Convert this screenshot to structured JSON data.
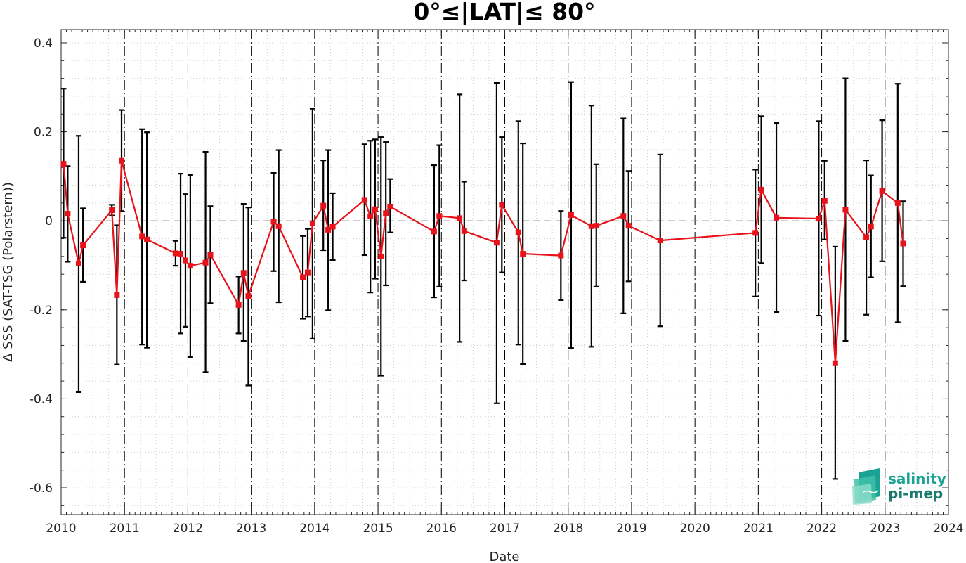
{
  "chart_data": {
    "type": "line",
    "title": "0°≤|LAT|≤ 80°",
    "xlabel": "Date",
    "ylabel": "Δ SSS (SAT-TSG (Polarstern))",
    "xlim": [
      "2010-01-01",
      "2024-01-01"
    ],
    "ylim": [
      -0.66,
      0.43
    ],
    "x_ticks": [
      "2010",
      "2011",
      "2012",
      "2013",
      "2014",
      "2015",
      "2016",
      "2017",
      "2018",
      "2019",
      "2020",
      "2021",
      "2022",
      "2023",
      "2024"
    ],
    "y_ticks": [
      "0.4",
      "0.2",
      "0",
      "-0.2",
      "-0.4",
      "-0.6"
    ],
    "y_tick_values": [
      0.4,
      0.2,
      0,
      -0.2,
      -0.4,
      -0.6
    ],
    "grid": "minor dotted",
    "reference_line": 0,
    "year_boundaries": [
      "2011",
      "2012",
      "2013",
      "2014",
      "2015",
      "2016",
      "2017",
      "2018",
      "2019",
      "2020",
      "2021",
      "2022",
      "2023"
    ],
    "colors": {
      "series": "#e8121a",
      "errorbar": "#000000",
      "reference": "#808080",
      "logo": "#1aa394"
    },
    "series": [
      {
        "x": [
          "2010-01-15",
          "2010-02-08",
          "2010-04-12",
          "2010-05-07",
          "2010-10-20",
          "2010-11-18",
          "2010-12-15",
          "2011-04-12",
          "2011-05-10",
          "2011-10-22",
          "2011-11-20",
          "2011-12-18",
          "2012-01-15",
          "2012-04-12",
          "2012-05-10",
          "2012-10-20",
          "2012-11-18",
          "2012-12-15",
          "2013-05-10",
          "2013-06-08",
          "2013-10-25",
          "2013-11-22",
          "2013-12-20",
          "2014-02-20",
          "2014-03-20",
          "2014-04-15",
          "2014-10-15",
          "2014-11-18",
          "2014-12-15",
          "2015-01-18",
          "2015-02-15",
          "2015-03-12",
          "2015-11-20",
          "2015-12-20",
          "2016-04-15",
          "2016-05-12",
          "2016-11-15",
          "2016-12-15",
          "2017-03-20",
          "2017-04-15",
          "2017-11-20",
          "2018-01-18",
          "2018-05-15",
          "2018-06-12",
          "2018-11-15",
          "2018-12-15",
          "2019-06-15",
          "2020-12-15",
          "2021-01-18",
          "2021-04-15",
          "2021-12-15",
          "2022-01-18",
          "2022-03-20",
          "2022-05-18",
          "2022-09-15",
          "2022-10-12",
          "2022-12-15",
          "2023-03-15",
          "2023-04-15"
        ],
        "values": [
          0.128,
          0.016,
          -0.096,
          -0.055,
          0.024,
          -0.167,
          0.135,
          -0.035,
          -0.042,
          -0.073,
          -0.074,
          -0.089,
          -0.101,
          -0.094,
          -0.076,
          -0.189,
          -0.117,
          -0.169,
          -0.002,
          -0.012,
          -0.127,
          -0.116,
          -0.006,
          0.034,
          -0.02,
          -0.013,
          0.047,
          0.01,
          0.026,
          -0.08,
          0.017,
          0.032,
          -0.024,
          0.011,
          0.006,
          -0.023,
          -0.049,
          0.036,
          -0.026,
          -0.074,
          -0.078,
          0.013,
          -0.012,
          -0.011,
          0.011,
          -0.011,
          -0.044,
          -0.027,
          0.07,
          0.007,
          0.005,
          0.045,
          -0.32,
          0.025,
          -0.037,
          -0.013,
          0.067,
          0.04,
          -0.051
        ],
        "error_low": [
          -0.038,
          -0.092,
          -0.385,
          -0.137,
          0.012,
          -0.323,
          0.022,
          -0.278,
          -0.285,
          -0.101,
          -0.253,
          -0.238,
          -0.306,
          -0.34,
          -0.185,
          -0.253,
          -0.27,
          -0.37,
          -0.113,
          -0.183,
          -0.22,
          -0.215,
          -0.265,
          -0.066,
          -0.201,
          -0.088,
          -0.077,
          -0.161,
          -0.13,
          -0.348,
          -0.145,
          -0.026,
          -0.172,
          -0.148,
          -0.272,
          -0.134,
          -0.41,
          -0.116,
          -0.278,
          -0.322,
          -0.178,
          -0.286,
          -0.283,
          -0.148,
          -0.208,
          -0.136,
          -0.237,
          -0.17,
          -0.095,
          -0.205,
          -0.213,
          -0.042,
          -0.58,
          -0.27,
          -0.211,
          -0.127,
          -0.091,
          -0.228,
          -0.147
        ],
        "error_high": [
          0.297,
          0.123,
          0.191,
          0.028,
          0.036,
          -0.01,
          0.249,
          0.206,
          0.199,
          -0.045,
          0.106,
          0.06,
          0.103,
          0.155,
          0.033,
          -0.125,
          0.038,
          0.03,
          0.108,
          0.159,
          -0.034,
          -0.018,
          0.252,
          0.136,
          0.159,
          0.062,
          0.172,
          0.18,
          0.183,
          0.188,
          0.177,
          0.094,
          0.125,
          0.17,
          0.284,
          0.088,
          0.31,
          0.188,
          0.224,
          0.174,
          0.022,
          0.312,
          0.259,
          0.127,
          0.23,
          0.112,
          0.149,
          0.115,
          0.235,
          0.22,
          0.224,
          0.135,
          -0.058,
          0.32,
          0.136,
          0.102,
          0.226,
          0.308,
          0.044
        ]
      }
    ]
  },
  "logo": {
    "line1": "salinity",
    "line2": "pi-mep"
  }
}
